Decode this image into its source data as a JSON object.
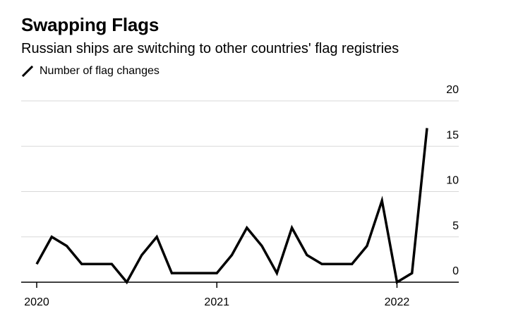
{
  "title": "Swapping Flags",
  "subtitle": "Russian ships are switching to other countries' flag registries",
  "legend": {
    "label": "Number of flag changes",
    "icon": "line-swatch-icon"
  },
  "colors": {
    "line": "#000000",
    "grid": "#d9d9d9",
    "axis": "#000000"
  },
  "chart_data": {
    "type": "line",
    "title": "Swapping Flags",
    "subtitle": "Russian ships are switching to other countries' flag registries",
    "xlabel": "",
    "ylabel": "",
    "series": [
      {
        "name": "Number of flag changes",
        "x": [
          "2020-01",
          "2020-02",
          "2020-03",
          "2020-04",
          "2020-05",
          "2020-06",
          "2020-07",
          "2020-08",
          "2020-09",
          "2020-10",
          "2020-11",
          "2020-12",
          "2021-01",
          "2021-02",
          "2021-03",
          "2021-04",
          "2021-05",
          "2021-06",
          "2021-07",
          "2021-08",
          "2021-09",
          "2021-10",
          "2021-11",
          "2021-12",
          "2022-01",
          "2022-02",
          "2022-03"
        ],
        "values": [
          2,
          5,
          4,
          2,
          2,
          2,
          0,
          3,
          5,
          1,
          1,
          1,
          1,
          3,
          6,
          4,
          1,
          6,
          3,
          2,
          2,
          2,
          4,
          9,
          0,
          1,
          17
        ]
      }
    ],
    "x_ticks": [
      {
        "label": "2020",
        "index": 0
      },
      {
        "label": "2021",
        "index": 12
      },
      {
        "label": "2022",
        "index": 24
      }
    ],
    "y_ticks": [
      {
        "label": "0",
        "value": 0
      },
      {
        "label": "5",
        "value": 5
      },
      {
        "label": "10",
        "value": 10
      },
      {
        "label": "15",
        "value": 15
      },
      {
        "label": "20",
        "value": 20
      }
    ],
    "ylim": [
      0,
      20
    ],
    "grid": true,
    "legend_position": "top-left"
  }
}
